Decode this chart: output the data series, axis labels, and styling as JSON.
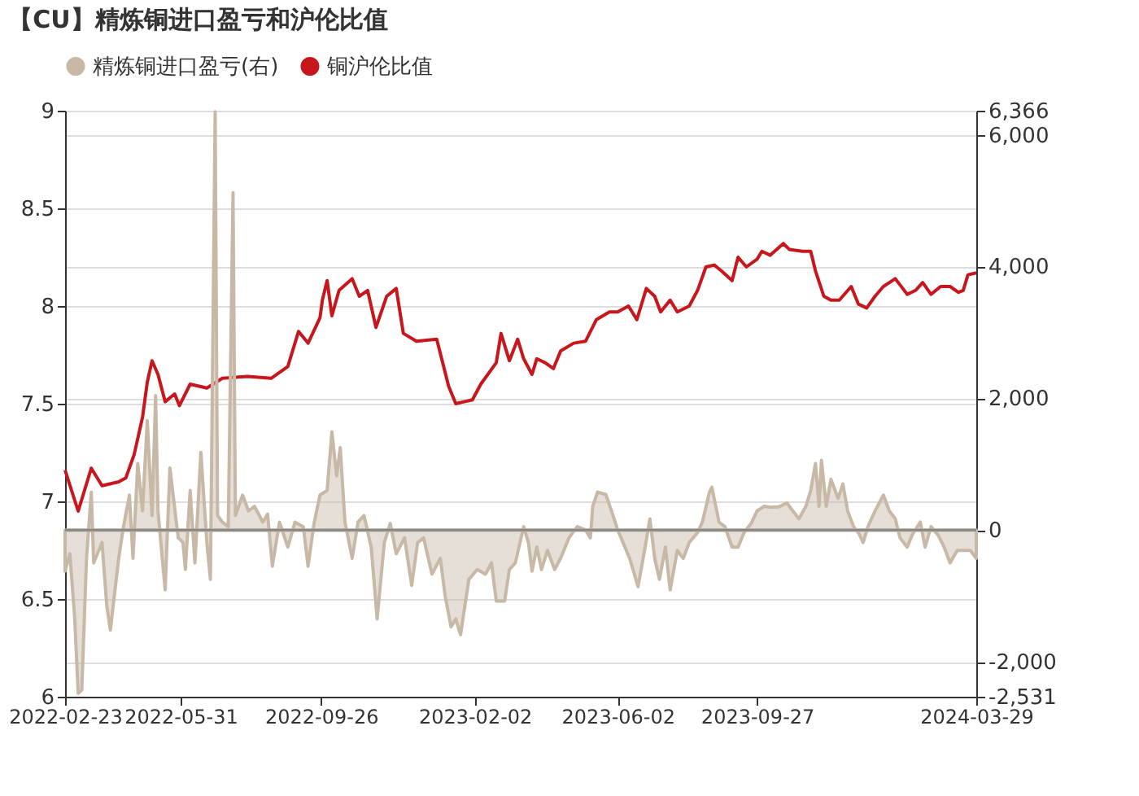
{
  "chart_data": {
    "type": "line",
    "title": "【CU】精炼铜进口盈亏和沪伦比值",
    "xlim": [
      "2022-02-23",
      "2024-03-29"
    ],
    "xticks": [
      "2022-02-23",
      "2022-05-31",
      "2022-09-26",
      "2023-02-02",
      "2023-06-02",
      "2023-09-27",
      "2024-03-29"
    ],
    "ylim": [
      6,
      9
    ],
    "yticks": [
      6,
      6.5,
      7,
      7.5,
      8,
      8.5,
      9
    ],
    "y2lim": [
      -2531,
      6366
    ],
    "y2ticks": [
      {
        "value": -2531,
        "label": "-2,531"
      },
      {
        "value": -2000,
        "label": "-2,000"
      },
      0,
      {
        "value": 2000,
        "label": "2,000"
      },
      {
        "value": 4000,
        "label": "4,000"
      },
      {
        "value": 6000,
        "label": "6,000"
      },
      {
        "value": 6366,
        "label": "6,366"
      }
    ],
    "grid": "y",
    "legend": "top",
    "marker": "none",
    "line_style": "solid",
    "ref_lines": [
      {
        "axis": "y2",
        "value": 0,
        "color": "#888888"
      }
    ],
    "series": [
      {
        "name": "精炼铜进口盈亏(右)",
        "type": "area",
        "axis": "y2",
        "color": "#c8b9a6",
        "x": [
          "2022-02-23",
          "2022-02-27",
          "2022-03-03",
          "2022-03-06",
          "2022-03-09",
          "2022-03-13",
          "2022-03-17",
          "2022-03-19",
          "2022-03-26",
          "2022-03-30",
          "2022-04-02",
          "2022-04-09",
          "2022-04-13",
          "2022-04-18",
          "2022-04-21",
          "2022-04-25",
          "2022-04-29",
          "2022-05-03",
          "2022-05-07",
          "2022-05-10",
          "2022-05-12",
          "2022-05-18",
          "2022-05-22",
          "2022-05-29",
          "2022-06-02",
          "2022-06-04",
          "2022-06-08",
          "2022-06-12",
          "2022-06-17",
          "2022-06-22",
          "2022-06-25",
          "2022-06-29",
          "2022-07-01",
          "2022-07-05",
          "2022-07-10",
          "2022-07-14",
          "2022-07-16",
          "2022-07-22",
          "2022-07-27",
          "2022-08-01",
          "2022-08-08",
          "2022-08-12",
          "2022-08-16",
          "2022-08-22",
          "2022-08-29",
          "2022-09-04",
          "2022-09-11",
          "2022-09-15",
          "2022-09-20",
          "2022-09-25",
          "2022-10-01",
          "2022-10-05",
          "2022-10-09",
          "2022-10-12",
          "2022-10-16",
          "2022-10-22",
          "2022-10-27",
          "2022-11-01",
          "2022-11-07",
          "2022-11-12",
          "2022-11-18",
          "2022-11-23",
          "2022-11-28",
          "2022-12-05",
          "2022-12-11",
          "2022-12-16",
          "2022-12-21",
          "2022-12-28",
          "2023-01-04",
          "2023-01-08",
          "2023-01-13",
          "2023-01-17",
          "2023-01-21",
          "2023-01-28",
          "2023-02-04",
          "2023-02-11",
          "2023-02-16",
          "2023-02-20",
          "2023-02-27",
          "2023-03-03",
          "2023-03-08",
          "2023-03-15",
          "2023-03-19",
          "2023-03-22",
          "2023-03-26",
          "2023-03-30",
          "2023-04-04",
          "2023-04-10",
          "2023-04-15",
          "2023-04-22",
          "2023-04-29",
          "2023-05-06",
          "2023-05-10",
          "2023-05-12",
          "2023-05-16",
          "2023-05-23",
          "2023-05-29",
          "2023-06-02",
          "2023-06-08",
          "2023-06-12",
          "2023-06-19",
          "2023-06-25",
          "2023-06-29",
          "2023-07-03",
          "2023-07-07",
          "2023-07-12",
          "2023-07-16",
          "2023-07-22",
          "2023-07-27",
          "2023-08-01",
          "2023-08-08",
          "2023-08-12",
          "2023-08-18",
          "2023-08-20",
          "2023-08-26",
          "2023-08-31",
          "2023-09-06",
          "2023-09-11",
          "2023-09-16",
          "2023-09-22",
          "2023-09-27",
          "2023-10-03",
          "2023-10-08",
          "2023-10-15",
          "2023-10-22",
          "2023-10-27",
          "2023-11-01",
          "2023-11-07",
          "2023-11-11",
          "2023-11-15",
          "2023-11-18",
          "2023-11-20",
          "2023-11-24",
          "2023-11-28",
          "2023-12-04",
          "2023-12-08",
          "2023-12-12",
          "2023-12-17",
          "2023-12-21",
          "2023-12-25",
          "2023-12-29",
          "2024-01-04",
          "2024-01-11",
          "2024-01-16",
          "2024-01-21",
          "2024-01-25",
          "2024-01-31",
          "2024-02-04",
          "2024-02-11",
          "2024-02-15",
          "2024-02-20",
          "2024-02-26",
          "2024-03-02",
          "2024-03-07",
          "2024-03-13",
          "2024-03-18",
          "2024-03-24",
          "2024-03-29"
        ],
        "values": [
          -625,
          -360,
          -1320,
          -2480,
          -2430,
          -430,
          575,
          -500,
          -190,
          -1150,
          -1520,
          -430,
          50,
          530,
          -430,
          1010,
          290,
          1660,
          220,
          2040,
          290,
          -910,
          940,
          -120,
          -190,
          -600,
          600,
          -500,
          1180,
          -190,
          -750,
          6350,
          220,
          120,
          50,
          5120,
          220,
          530,
          290,
          360,
          120,
          240,
          -550,
          120,
          -260,
          120,
          50,
          -550,
          100,
          530,
          600,
          1490,
          820,
          1250,
          120,
          -430,
          120,
          220,
          -260,
          -1350,
          -190,
          100,
          -360,
          -120,
          -840,
          -190,
          -120,
          -670,
          -430,
          -990,
          -1470,
          -1350,
          -1590,
          -750,
          -600,
          -670,
          -500,
          -1080,
          -1080,
          -600,
          -500,
          50,
          -190,
          -625,
          -260,
          -600,
          -310,
          -600,
          -430,
          -120,
          50,
          0,
          -120,
          360,
          575,
          540,
          220,
          0,
          -260,
          -430,
          -860,
          -260,
          170,
          -430,
          -750,
          -260,
          -910,
          -310,
          -430,
          -190,
          -40,
          120,
          575,
          650,
          120,
          50,
          -260,
          -260,
          -40,
          100,
          290,
          360,
          345,
          350,
          410,
          290,
          170,
          360,
          600,
          1010,
          360,
          1060,
          360,
          770,
          480,
          700,
          290,
          50,
          -40,
          -190,
          50,
          290,
          530,
          290,
          170,
          -120,
          -260,
          -80,
          120,
          -260,
          50,
          -80,
          -260,
          -500,
          -310,
          -310,
          -310,
          -430
        ]
      },
      {
        "name": "铜沪伦比值",
        "axis": "y",
        "color": "#c8161d",
        "x": [
          "2022-02-23",
          "2022-03-06",
          "2022-03-17",
          "2022-03-26",
          "2022-04-09",
          "2022-04-15",
          "2022-04-22",
          "2022-04-29",
          "2022-05-03",
          "2022-05-07",
          "2022-05-12",
          "2022-05-18",
          "2022-05-26",
          "2022-05-30",
          "2022-06-08",
          "2022-06-22",
          "2022-07-05",
          "2022-07-26",
          "2022-08-15",
          "2022-08-29",
          "2022-09-07",
          "2022-09-15",
          "2022-09-25",
          "2022-09-27",
          "2022-10-01",
          "2022-10-05",
          "2022-10-11",
          "2022-10-22",
          "2022-10-28",
          "2022-11-04",
          "2022-11-11",
          "2022-11-20",
          "2022-11-28",
          "2022-12-04",
          "2022-12-15",
          "2023-01-01",
          "2023-01-11",
          "2023-01-17",
          "2023-01-24",
          "2023-01-31",
          "2023-02-07",
          "2023-02-20",
          "2023-02-24",
          "2023-03-03",
          "2023-03-10",
          "2023-03-15",
          "2023-03-22",
          "2023-03-26",
          "2023-04-02",
          "2023-04-09",
          "2023-04-15",
          "2023-04-26",
          "2023-05-06",
          "2023-05-15",
          "2023-05-26",
          "2023-06-02",
          "2023-06-11",
          "2023-06-18",
          "2023-06-26",
          "2023-07-03",
          "2023-07-08",
          "2023-07-16",
          "2023-07-22",
          "2023-08-01",
          "2023-08-08",
          "2023-08-15",
          "2023-08-22",
          "2023-08-28",
          "2023-09-06",
          "2023-09-11",
          "2023-09-18",
          "2023-09-27",
          "2023-10-01",
          "2023-10-08",
          "2023-10-19",
          "2023-10-24",
          "2023-11-04",
          "2023-11-11",
          "2023-11-15",
          "2023-11-22",
          "2023-11-28",
          "2023-12-05",
          "2023-12-15",
          "2023-12-21",
          "2023-12-28",
          "2024-01-04",
          "2024-01-11",
          "2024-01-21",
          "2024-01-31",
          "2024-02-07",
          "2024-02-13",
          "2024-02-20",
          "2024-02-28",
          "2024-03-07",
          "2024-03-14",
          "2024-03-18",
          "2024-03-22",
          "2024-03-29"
        ],
        "values": [
          7.16,
          6.95,
          7.17,
          7.08,
          7.1,
          7.12,
          7.24,
          7.43,
          7.61,
          7.72,
          7.65,
          7.51,
          7.55,
          7.49,
          7.6,
          7.58,
          7.63,
          7.64,
          7.63,
          7.69,
          7.87,
          7.81,
          7.94,
          8.03,
          8.13,
          7.95,
          8.08,
          8.14,
          8.05,
          8.08,
          7.89,
          8.05,
          8.09,
          7.86,
          7.82,
          7.83,
          7.59,
          7.5,
          7.51,
          7.52,
          7.6,
          7.71,
          7.86,
          7.72,
          7.83,
          7.73,
          7.65,
          7.73,
          7.71,
          7.68,
          7.77,
          7.81,
          7.82,
          7.93,
          7.97,
          7.97,
          8.0,
          7.93,
          8.09,
          8.05,
          7.97,
          8.03,
          7.97,
          8.0,
          8.08,
          8.2,
          8.21,
          8.18,
          8.13,
          8.25,
          8.2,
          8.24,
          8.28,
          8.26,
          8.32,
          8.29,
          8.28,
          8.28,
          8.18,
          8.05,
          8.03,
          8.03,
          8.1,
          8.01,
          7.99,
          8.05,
          8.1,
          8.14,
          8.06,
          8.08,
          8.12,
          8.06,
          8.1,
          8.1,
          8.07,
          8.08,
          8.16,
          8.17
        ]
      }
    ]
  }
}
